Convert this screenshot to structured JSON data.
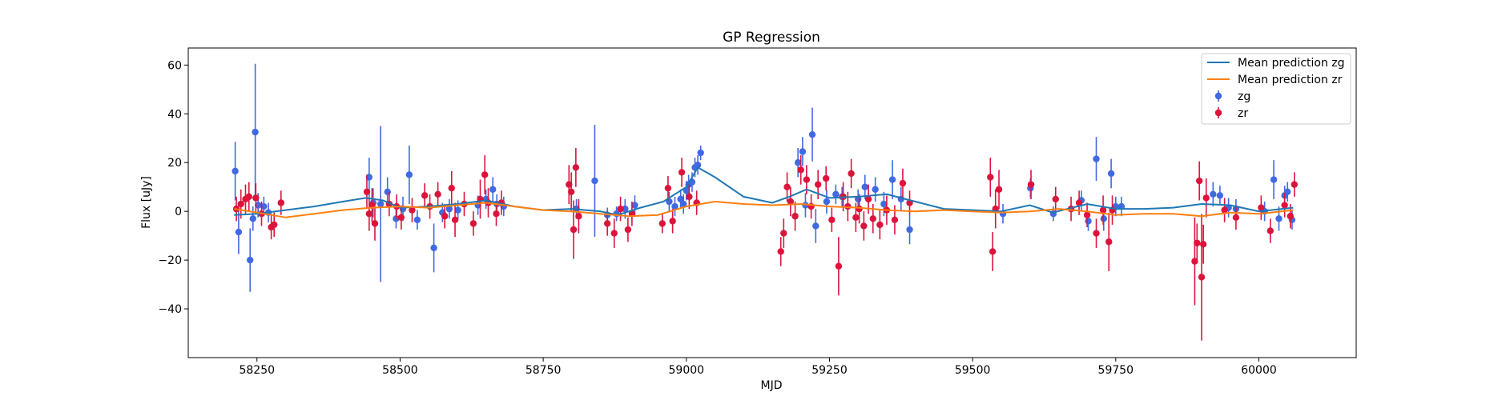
{
  "chart_data": {
    "type": "scatter",
    "title": "GP Regression",
    "xlabel": "MJD",
    "ylabel": "Flux [uJy]",
    "xlim": [
      58130,
      60170
    ],
    "ylim": [
      -60,
      67
    ],
    "xticks": [
      58250,
      58500,
      58750,
      59000,
      59250,
      59500,
      59750,
      60000
    ],
    "yticks": [
      -40,
      -20,
      0,
      20,
      40,
      60
    ],
    "grid": false,
    "legend_position": "top-right",
    "colors": {
      "zg_line": "#1f77b4",
      "zr_line": "#ff7f0e",
      "zg_points": "#4169e1",
      "zr_points": "#dc143c"
    },
    "lines": [
      {
        "name": "Mean prediction zg",
        "color": "#1f77b4",
        "x": [
          58210,
          58250,
          58300,
          58350,
          58400,
          58440,
          58470,
          58500,
          58550,
          58600,
          58650,
          58700,
          58750,
          58800,
          58850,
          58880,
          58920,
          58960,
          59000,
          59020,
          59050,
          59100,
          59150,
          59180,
          59210,
          59250,
          59300,
          59350,
          59400,
          59450,
          59500,
          59550,
          59600,
          59640,
          59700,
          59750,
          59800,
          59850,
          59900,
          59950,
          60000,
          60060
        ],
        "y": [
          -1.5,
          -1.0,
          0.5,
          2.0,
          4.0,
          5.5,
          4.5,
          1.5,
          2.0,
          3.0,
          4.5,
          2.0,
          0.5,
          1.0,
          0.0,
          -1.5,
          1.5,
          4.0,
          10.0,
          18.0,
          14.0,
          6.0,
          3.5,
          6.0,
          9.0,
          5.5,
          6.0,
          7.0,
          4.0,
          1.0,
          0.5,
          0.0,
          2.5,
          -0.5,
          3.0,
          1.0,
          1.0,
          1.5,
          3.0,
          2.5,
          0.0,
          1.5
        ]
      },
      {
        "name": "Mean prediction zr",
        "color": "#ff7f0e",
        "x": [
          58210,
          58250,
          58300,
          58350,
          58400,
          58450,
          58500,
          58550,
          58600,
          58650,
          58700,
          58750,
          58800,
          58850,
          58900,
          58950,
          59000,
          59050,
          59100,
          59150,
          59200,
          59250,
          59300,
          59350,
          59400,
          59450,
          59500,
          59550,
          59600,
          59650,
          59700,
          59750,
          59800,
          59850,
          59900,
          59950,
          60000,
          60060
        ],
        "y": [
          1.0,
          -0.5,
          -2.5,
          -1.0,
          0.5,
          1.5,
          2.0,
          1.5,
          2.5,
          3.5,
          2.0,
          0.5,
          0.0,
          -1.0,
          -2.0,
          -1.5,
          2.0,
          4.0,
          3.0,
          2.5,
          3.0,
          2.0,
          1.5,
          0.5,
          0.0,
          0.5,
          0.0,
          -0.5,
          0.0,
          1.0,
          0.0,
          -1.5,
          -1.0,
          -1.0,
          -2.0,
          -0.5,
          -1.0,
          0.5
        ]
      }
    ],
    "series": [
      {
        "name": "zg",
        "color": "#4169e1",
        "x": [
          58212,
          58218,
          58238,
          58243,
          58247,
          58252,
          58262,
          58270,
          58446,
          58453,
          58466,
          58478,
          58493,
          58505,
          58516,
          58530,
          58559,
          58574,
          58586,
          58601,
          58636,
          58650,
          58662,
          58669,
          58681,
          58808,
          58840,
          58862,
          58878,
          58893,
          58910,
          58970,
          58980,
          58990,
          58995,
          59000,
          59004,
          59010,
          59015,
          59020,
          59025,
          59195,
          59203,
          59208,
          59220,
          59226,
          59245,
          59261,
          59272,
          59300,
          59312,
          59330,
          59345,
          59360,
          59375,
          59390,
          59553,
          59601,
          59641,
          59690,
          59702,
          59716,
          59729,
          59742,
          59750,
          59760,
          59920,
          59932,
          59947,
          59960,
          60010,
          60026,
          60035,
          60045,
          60050,
          60058
        ],
        "y": [
          16.5,
          -8.5,
          -20.0,
          -3.0,
          32.5,
          2.5,
          2.0,
          -0.5,
          14.0,
          3.5,
          3.0,
          8.0,
          -3.0,
          1.0,
          15.0,
          -3.5,
          -15.0,
          -0.5,
          1.0,
          0.5,
          2.5,
          5.0,
          9.0,
          3.0,
          2.0,
          1.0,
          12.5,
          -1.5,
          -1.0,
          1.0,
          2.5,
          4.0,
          2.0,
          5.0,
          3.0,
          8.5,
          11.0,
          12.0,
          18.0,
          19.0,
          24.0,
          20.0,
          24.5,
          2.5,
          31.5,
          -6.0,
          4.0,
          7.0,
          6.0,
          5.0,
          10.0,
          9.0,
          3.0,
          13.0,
          5.0,
          -7.5,
          -1.0,
          9.5,
          -1.0,
          4.5,
          -4.0,
          21.5,
          -3.0,
          15.5,
          2.0,
          2.0,
          7.0,
          6.5,
          1.5,
          1.0,
          0.0,
          13.0,
          -3.0,
          6.5,
          8.0,
          -3.5
        ],
        "err": [
          12.0,
          9.0,
          13.0,
          5.0,
          28.0,
          5.0,
          4.0,
          4.0,
          8.0,
          6.0,
          32.0,
          6.0,
          4.0,
          5.0,
          12.0,
          4.0,
          10.0,
          4.0,
          4.0,
          4.0,
          4.0,
          4.0,
          5.0,
          4.0,
          4.0,
          4.0,
          23.0,
          3.0,
          3.0,
          4.0,
          4.0,
          4.0,
          4.0,
          4.0,
          4.0,
          4.0,
          4.0,
          4.0,
          4.0,
          4.0,
          3.0,
          6.0,
          6.0,
          5.0,
          11.0,
          7.0,
          5.0,
          4.0,
          4.0,
          4.0,
          5.0,
          5.0,
          5.0,
          8.0,
          5.0,
          6.0,
          4.0,
          4.0,
          3.0,
          4.0,
          4.0,
          9.0,
          5.0,
          6.0,
          4.0,
          4.0,
          5.0,
          4.0,
          4.0,
          4.0,
          4.0,
          8.0,
          5.0,
          4.0,
          4.0,
          4.0
        ]
      },
      {
        "name": "zr",
        "color": "#dc143c",
        "x": [
          58214,
          58222,
          58230,
          58236,
          58248,
          58258,
          58275,
          58280,
          58292,
          58442,
          58446,
          58451,
          58456,
          58481,
          58494,
          58502,
          58521,
          58543,
          58552,
          58566,
          58578,
          58590,
          58596,
          58612,
          58628,
          58640,
          58648,
          58654,
          58668,
          58677,
          58795,
          58799,
          58803,
          58807,
          58812,
          58862,
          58874,
          58885,
          58898,
          58905,
          58958,
          58968,
          58976,
          58992,
          59005,
          59018,
          59165,
          59170,
          59176,
          59182,
          59190,
          59200,
          59210,
          59218,
          59230,
          59244,
          59254,
          59266,
          59274,
          59282,
          59288,
          59296,
          59302,
          59310,
          59318,
          59326,
          59338,
          59350,
          59364,
          59378,
          59390,
          59531,
          59535,
          59540,
          59546,
          59602,
          59645,
          59672,
          59686,
          59700,
          59716,
          59728,
          59738,
          59744,
          59888,
          59892,
          59896,
          59900,
          59903,
          59908,
          59940,
          59960,
          60004,
          60020,
          60045,
          60055,
          60062
        ],
        "y": [
          1.0,
          3.0,
          5.0,
          6.0,
          5.5,
          -1.0,
          -6.5,
          -5.5,
          3.5,
          8.0,
          -1.0,
          2.5,
          -5.0,
          3.0,
          2.0,
          -2.5,
          0.5,
          6.5,
          2.0,
          7.0,
          -2.0,
          9.5,
          -3.5,
          3.0,
          -5.0,
          5.0,
          15.0,
          3.5,
          -1.0,
          3.5,
          11.0,
          8.0,
          -7.5,
          18.0,
          -2.0,
          -5.0,
          -9.0,
          1.0,
          -7.5,
          -1.0,
          -5.0,
          9.5,
          -4.0,
          16.0,
          6.0,
          3.5,
          -16.5,
          -9.0,
          10.0,
          4.0,
          -2.0,
          17.0,
          13.0,
          2.0,
          11.0,
          13.5,
          -3.5,
          -22.5,
          6.0,
          2.0,
          15.5,
          -2.5,
          1.0,
          -6.0,
          5.0,
          -3.0,
          -5.5,
          0.5,
          -3.5,
          11.5,
          3.5,
          14.0,
          -16.5,
          1.0,
          9.0,
          11.0,
          5.0,
          1.0,
          3.5,
          -1.5,
          -9.0,
          0.5,
          -12.5,
          0.5,
          -20.5,
          -13.0,
          12.5,
          -27.0,
          -13.5,
          5.5,
          0.5,
          -2.5,
          1.5,
          -8.0,
          2.5,
          -2.0,
          11.0
        ],
        "err": [
          5.0,
          6.0,
          6.0,
          6.0,
          6.0,
          5.0,
          5.0,
          5.0,
          5.0,
          7.0,
          7.0,
          7.0,
          7.0,
          5.0,
          5.0,
          5.0,
          5.0,
          5.0,
          5.0,
          5.0,
          5.0,
          7.0,
          7.0,
          5.0,
          5.0,
          8.0,
          8.0,
          6.0,
          5.0,
          5.0,
          8.0,
          8.0,
          12.0,
          8.0,
          7.0,
          5.0,
          6.0,
          5.0,
          5.0,
          5.0,
          4.0,
          5.0,
          5.0,
          6.0,
          5.0,
          5.0,
          6.0,
          6.0,
          6.0,
          6.0,
          6.0,
          6.0,
          6.0,
          5.0,
          6.0,
          5.0,
          5.0,
          12.0,
          6.0,
          6.0,
          6.0,
          6.0,
          6.0,
          6.0,
          6.0,
          6.0,
          6.0,
          6.0,
          6.0,
          6.0,
          5.0,
          8.0,
          8.0,
          8.0,
          8.0,
          6.0,
          5.0,
          5.0,
          5.0,
          5.0,
          6.0,
          6.0,
          12.0,
          6.0,
          18.0,
          8.0,
          8.0,
          26.0,
          8.0,
          8.0,
          5.0,
          5.0,
          5.0,
          5.0,
          5.0,
          5.0,
          5.0
        ]
      }
    ]
  }
}
